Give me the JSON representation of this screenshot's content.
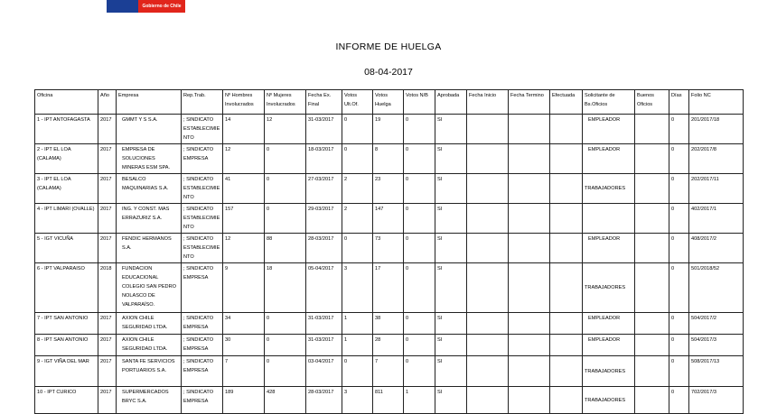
{
  "logo": {
    "text": "Gobierno de Chile",
    "colors": {
      "blue": "#1b3f95",
      "red": "#e1251b"
    }
  },
  "title": "INFORME DE HUELGA",
  "date": "08-04-2017",
  "table": {
    "headers": [
      "Oficina",
      "Año",
      "Empresa",
      "Rep.Trab.",
      "Nº Hombres Involucrados",
      "Nº Mujeres Involucrados",
      "Fecha Ex. Final",
      "Votos Ult.Of.",
      "Votos Huelga",
      "Votos N/B",
      "Aprobada",
      "Fecha Inicio",
      "Fecha Termino",
      "Efectuada",
      "Solicitante de Bs.Oficios",
      "Buenos Oficios",
      "Días",
      "Folio NC"
    ],
    "rows": [
      [
        "1 - IPT ANTOFAGASTA",
        "2017",
        "GMMT Y S S.A.",
        "; SINDICATO ESTABLECIMIENTO",
        "14",
        "12",
        "31-03/2017",
        "0",
        "19",
        "0",
        "SI",
        "",
        "",
        "",
        "EMPLEADOR",
        "",
        "0",
        "201/2017/18"
      ],
      [
        "2 - IPT EL LOA (CALAMA)",
        "2017",
        "EMPRESA DE SOLUCIONES MINERAS ESM SPA.",
        "; SINDICATO EMPRESA",
        "12",
        "0",
        "18-03/2017",
        "0",
        "8",
        "0",
        "SI",
        "",
        "",
        "",
        "EMPLEADOR",
        "",
        "0",
        "202/2017/8"
      ],
      [
        "3 - IPT EL LOA (CALAMA)",
        "2017",
        "BESALCO MAQUINARIAS S.A.",
        "; SINDICATO ESTABLECIMIENTO",
        "41",
        "0",
        "27-03/2017",
        "2",
        "23",
        "0",
        "SI",
        "",
        "",
        "",
        "TRABAJADORES",
        "",
        "0",
        "202/2017/11"
      ],
      [
        "4 - IPT LIMARI (OVALLE)",
        "2017",
        "ING. Y CONST. MAS ERRAZURIZ S.A.",
        "; SINDICATO ESTABLECIMIENTO",
        "157",
        "0",
        "29-03/2017",
        "2",
        "147",
        "0",
        "SI",
        "",
        "",
        "",
        "",
        "",
        "0",
        "402/2017/1"
      ],
      [
        "5 - IGT VICUÑA",
        "2017",
        "FENDIC HERMANOS S.A.",
        "; SINDICATO ESTABLECIMIENTO",
        "12",
        "88",
        "28-03/2017",
        "0",
        "73",
        "0",
        "SI",
        "",
        "",
        "",
        "EMPLEADOR",
        "",
        "0",
        "408/2017/2"
      ],
      [
        "6 - IPT VALPARAISO",
        "2018",
        "FUNDACION EDUCACIONAL COLEGIO SAN PEDRO NOLASCO DE VALPARAÍSO.",
        "; SINDICATO EMPRESA",
        "9",
        "18",
        "05-04/2017",
        "3",
        "17",
        "0",
        "SI",
        "",
        "",
        "",
        "TRABAJADORES",
        "",
        "0",
        "501/2018/52"
      ],
      [
        "7 - IPT SAN ANTONIO",
        "2017",
        "AXION CHILE SEGURIDAD LTDA.",
        "; SINDICATO EMPRESA",
        "34",
        "0",
        "31-03/2017",
        "1",
        "38",
        "0",
        "SI",
        "",
        "",
        "",
        "EMPLEADOR",
        "",
        "0",
        "504/2017/2"
      ],
      [
        "8 - IPT SAN ANTONIO",
        "2017",
        "AXION CHILE SEGURIDAD LTDA.",
        "; SINDICATO EMPRESA",
        "30",
        "0",
        "31-03/2017",
        "1",
        "28",
        "0",
        "SI",
        "",
        "",
        "",
        "EMPLEADOR",
        "",
        "0",
        "504/2017/3"
      ],
      [
        "9 - IGT VIÑA DEL MAR",
        "2017",
        "SANTA FE SERVICIOS PORTUARIOS S.A.",
        "; SINDICATO EMPRESA",
        "7",
        "0",
        "03-04/2017",
        "0",
        "7",
        "0",
        "SI",
        "",
        "",
        "",
        "TRABAJADORES",
        "",
        "0",
        "508/2017/13"
      ],
      [
        "10 - IPT CURICO",
        "2017",
        "SUPERMERCADOS BRYC S.A.",
        "; SINDICATO EMPRESA",
        "189",
        "428",
        "28-03/2017",
        "3",
        "811",
        "1",
        "SI",
        "",
        "",
        "",
        "TRABAJADORES",
        "",
        "0",
        "702/2017/3"
      ]
    ]
  }
}
